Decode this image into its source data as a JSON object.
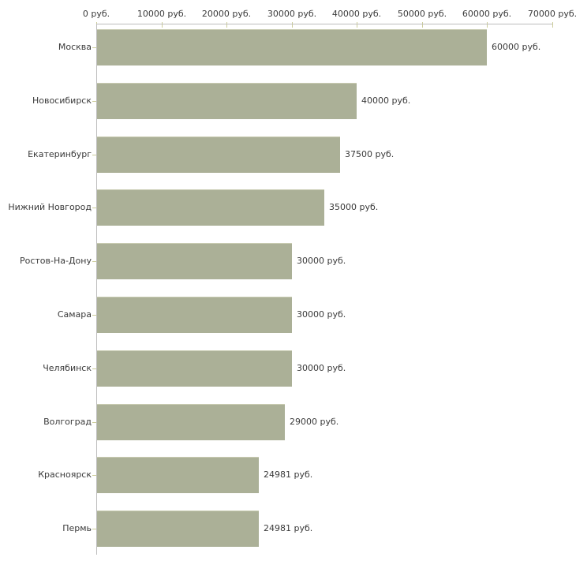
{
  "chart": {
    "colors": {
      "background": "#ffffff",
      "bar_fill": "#abb097",
      "bar_top_edge": "#c8cbb1",
      "axis_line": "#bdbdbd",
      "tick_mark": "#cccc99",
      "text": "#3a3a3a"
    }
  },
  "chart_data": {
    "type": "bar",
    "orientation": "horizontal",
    "title": "",
    "xlabel": "",
    "ylabel": "",
    "grid": false,
    "legend": false,
    "categories": [
      "Москва",
      "Новосибирск",
      "Екатеринбург",
      "Нижний Новгород",
      "Ростов-На-Дону",
      "Самара",
      "Челябинск",
      "Волгоград",
      "Красноярск",
      "Пермь"
    ],
    "values": [
      60000,
      40000,
      37500,
      35000,
      30000,
      30000,
      30000,
      29000,
      24981,
      24981
    ],
    "value_labels": [
      "60000 руб.",
      "40000 руб.",
      "37500 руб.",
      "35000 руб.",
      "30000 руб.",
      "30000 руб.",
      "30000 руб.",
      "29000 руб.",
      "24981 руб.",
      "24981 руб."
    ],
    "x_axis": {
      "min": 0,
      "max": 70000,
      "tick_interval": 10000,
      "unit": "руб.",
      "tick_values": [
        0,
        10000,
        20000,
        30000,
        40000,
        50000,
        60000,
        70000
      ],
      "tick_labels": [
        "0 руб.",
        "10000 руб.",
        "20000 руб.",
        "30000 руб.",
        "40000 руб.",
        "50000 руб.",
        "60000 руб.",
        "70000 руб."
      ]
    }
  }
}
